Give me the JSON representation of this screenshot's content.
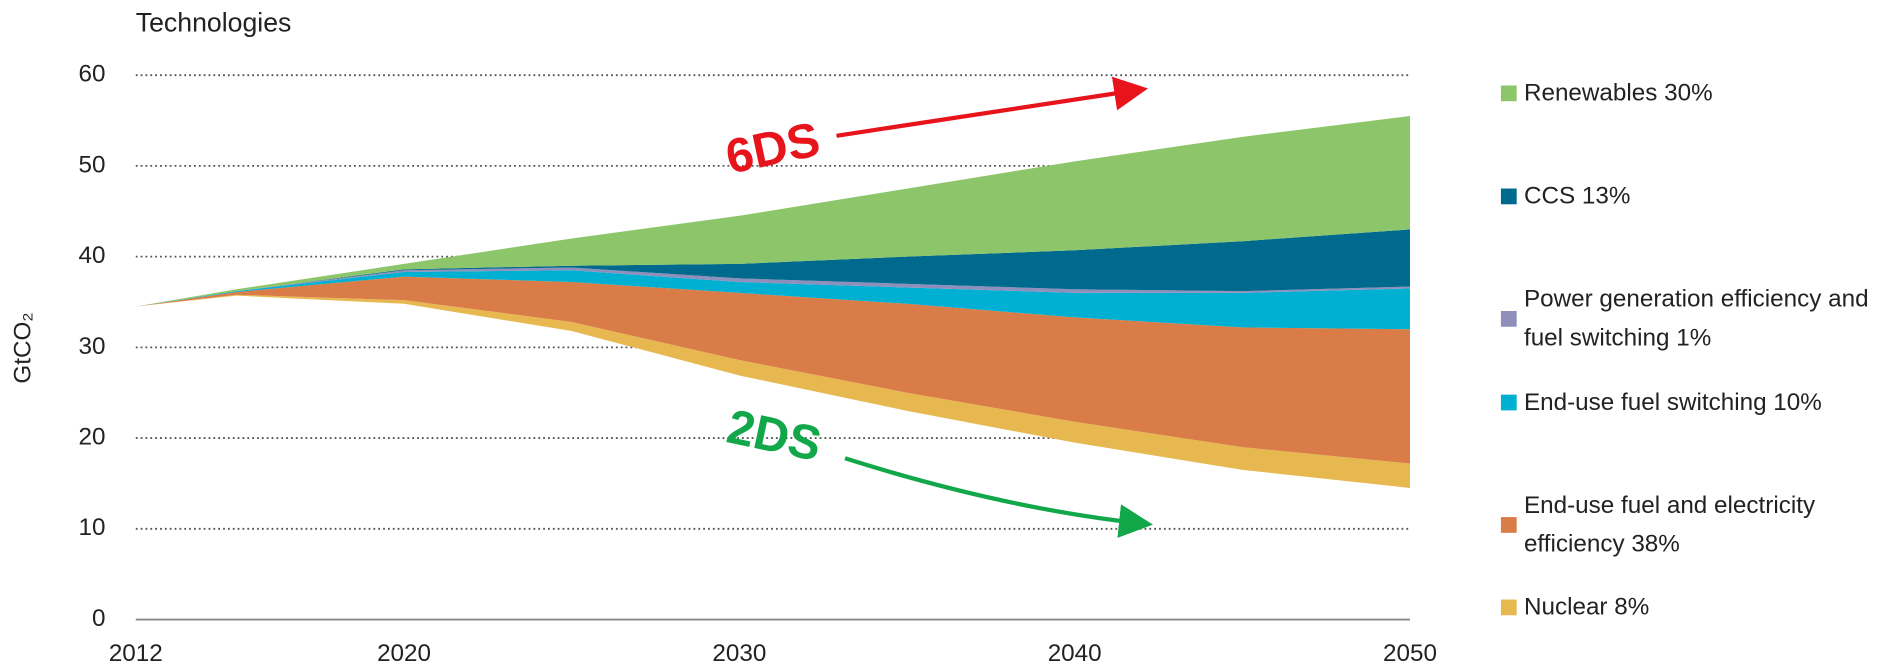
{
  "chart_data": {
    "type": "stacked_area",
    "title": "Technologies",
    "y_label": "GtCO₂",
    "x": [
      2012,
      2015,
      2020,
      2025,
      2030,
      2035,
      2040,
      2045,
      2050
    ],
    "xlim": [
      2012,
      2050
    ],
    "xticks": [
      2012,
      2020,
      2030,
      2040,
      2050
    ],
    "ylim": [
      0,
      60
    ],
    "yticks": [
      0,
      10,
      20,
      30,
      40,
      50,
      60
    ],
    "grid": true,
    "legend": "right",
    "baseline": {
      "name": "2DS",
      "values": [
        34.5,
        35.7,
        34.8,
        31.8,
        26.9,
        23.0,
        19.5,
        16.5,
        14.5
      ]
    },
    "annotations": [
      {
        "text": "6DS",
        "color": "#e8141c"
      }
    ],
    "series": [
      {
        "name": "Renewables 30%",
        "color": "#8dc66a",
        "values": [
          0,
          0.2,
          0.6,
          3.0,
          5.3,
          7.5,
          9.8,
          11.5,
          12.5
        ]
      },
      {
        "name": "CCS 13%",
        "color": "#006a8e",
        "values": [
          0,
          0,
          0.1,
          0.2,
          1.6,
          3.0,
          4.3,
          5.5,
          6.3
        ]
      },
      {
        "name": "Power generation efficiency and fuel switching 1%",
        "color": "#8e8fbb",
        "values": [
          0,
          0,
          0.2,
          0.3,
          0.4,
          0.4,
          0.4,
          0.2,
          0.2
        ]
      },
      {
        "name": "End-use fuel switching 10%",
        "color": "#00b0d2",
        "values": [
          0,
          0.1,
          0.5,
          1.3,
          1.2,
          1.8,
          2.7,
          3.8,
          4.5
        ]
      },
      {
        "name": "End-use fuel and electricity efficiency 38%",
        "color": "#d97c47",
        "values": [
          0,
          0.3,
          2.6,
          4.4,
          7.4,
          9.8,
          11.5,
          13.2,
          14.8
        ]
      },
      {
        "name": "Nuclear 8%",
        "color": "#e8b850",
        "values": [
          0,
          0.1,
          0.4,
          1.0,
          1.7,
          2.0,
          2.3,
          2.5,
          2.7
        ]
      }
    ]
  }
}
